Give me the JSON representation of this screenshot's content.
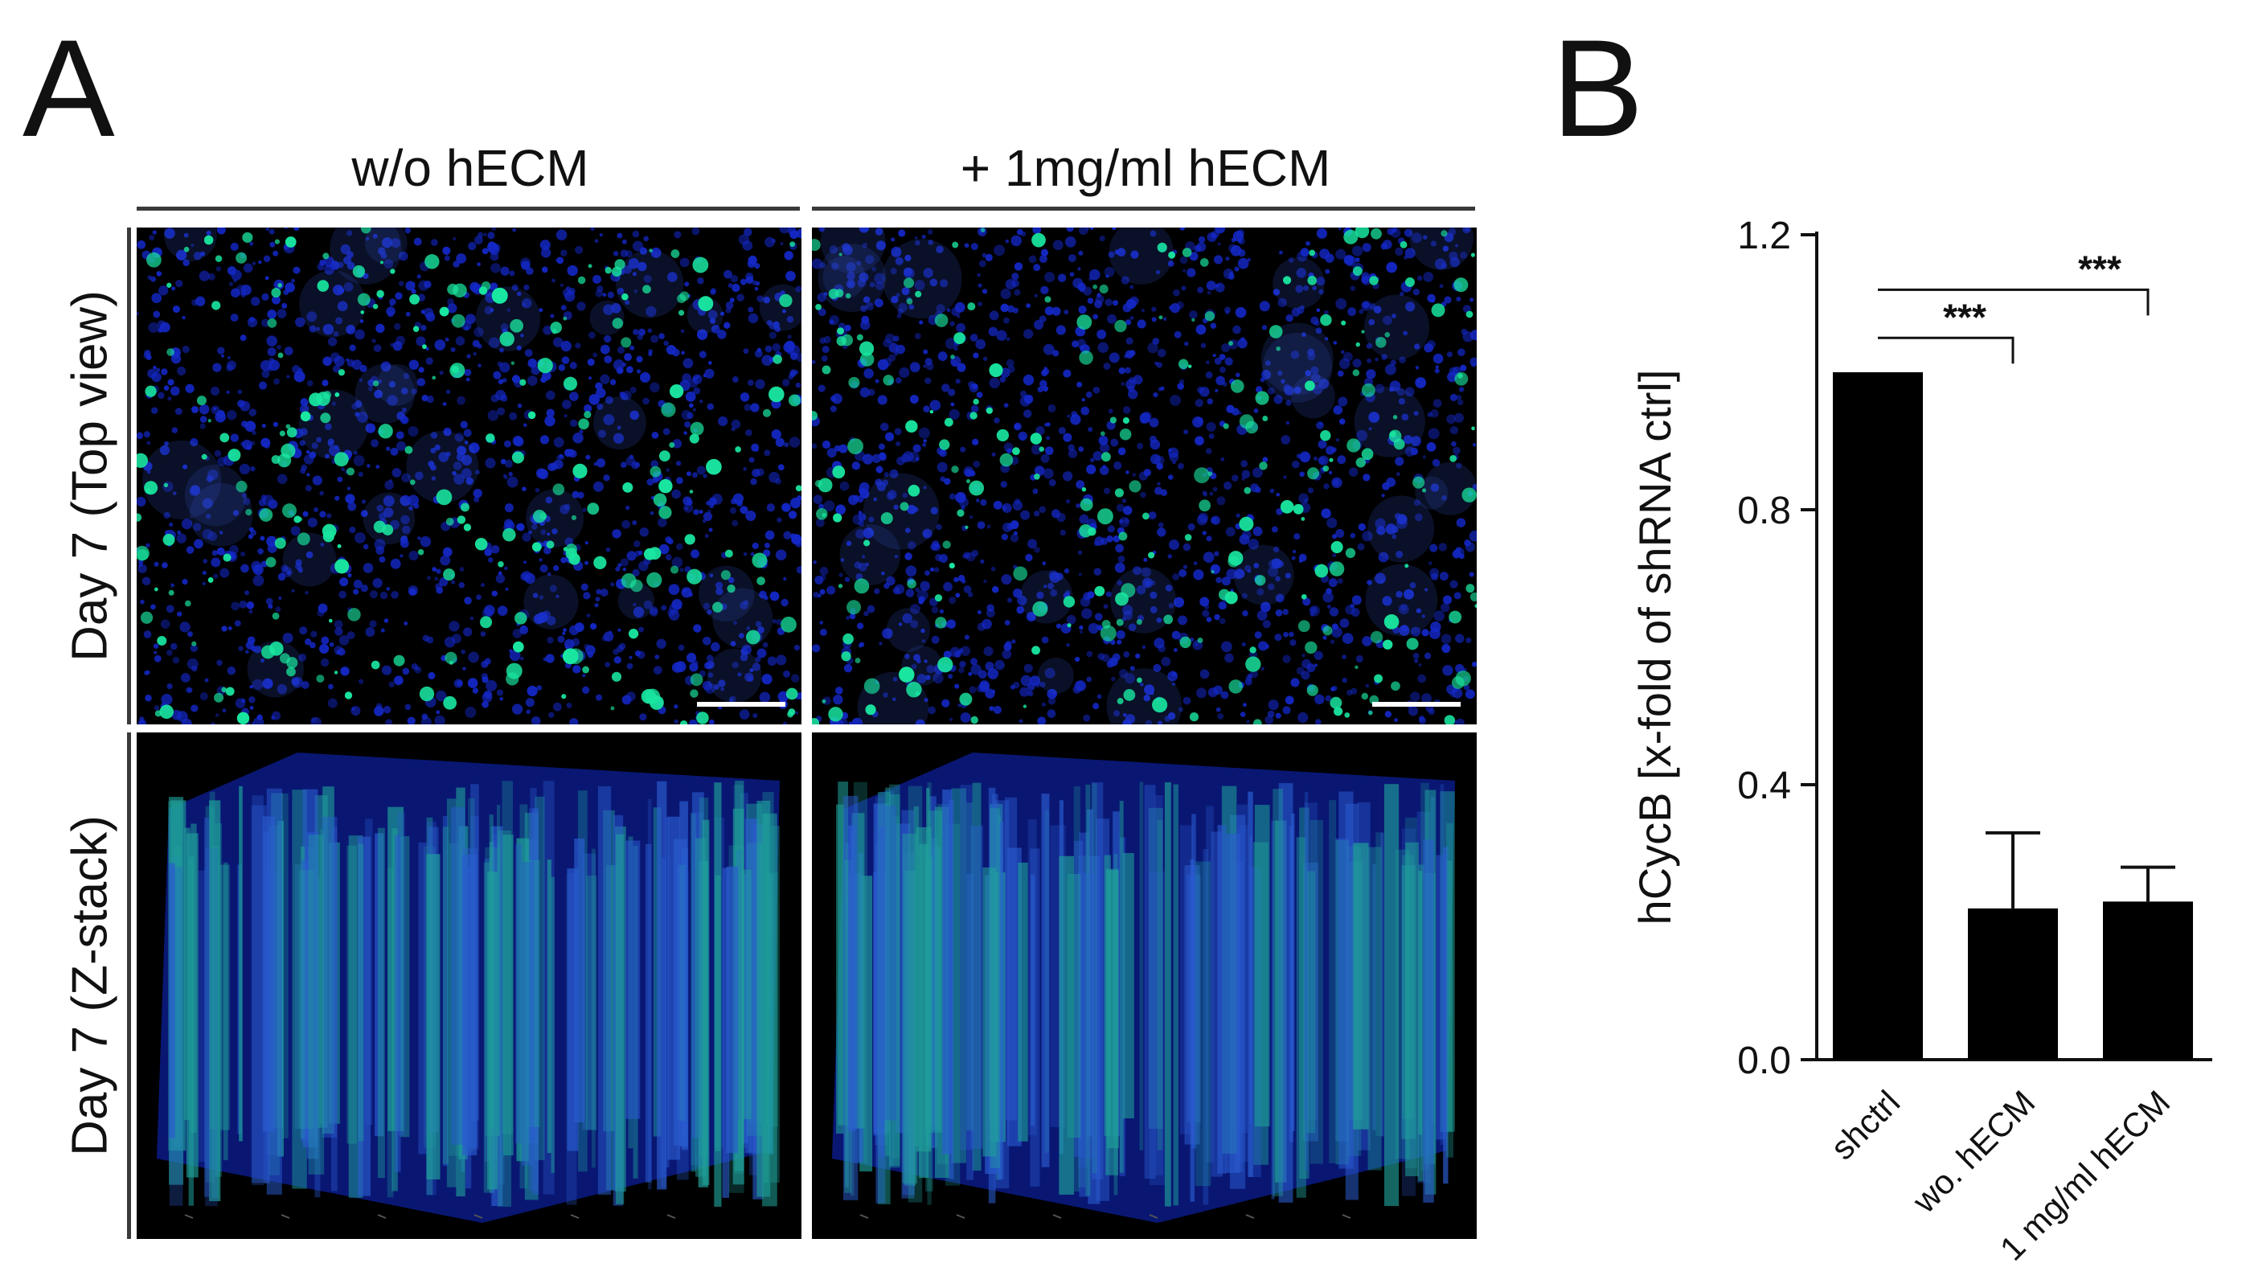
{
  "panel_a": {
    "letter": "A",
    "columns": [
      {
        "label": "w/o  hECM"
      },
      {
        "label": "+ 1mg/ml hECM"
      }
    ],
    "rows": [
      {
        "label": "Day 7 (Top view)"
      },
      {
        "label": "Day 7 (Z-stack)"
      }
    ],
    "colors": {
      "background": "#000000",
      "nuclei": "#1428c8",
      "marker": "#19e6a0",
      "stack": "#1fa09a"
    }
  },
  "panel_b": {
    "letter": "B"
  },
  "chart_data": {
    "type": "bar",
    "categories": [
      "shctrl",
      "wo. hECM",
      "1 mg/ml hECM"
    ],
    "values": [
      1.0,
      0.22,
      0.23
    ],
    "error": [
      0,
      0.11,
      0.05
    ],
    "ylabel": "hCycB [x-fold of shRNA ctrl]",
    "xlabel": "",
    "ylim": [
      0,
      1.2
    ],
    "yticks": [
      "0.0",
      "0.4",
      "0.8",
      "1.2"
    ],
    "bar_color": "#000000",
    "significance": [
      {
        "from": "shctrl",
        "to": "wo. hECM",
        "label": "***"
      },
      {
        "from": "shctrl",
        "to": "1 mg/ml hECM",
        "label": "***"
      }
    ]
  }
}
